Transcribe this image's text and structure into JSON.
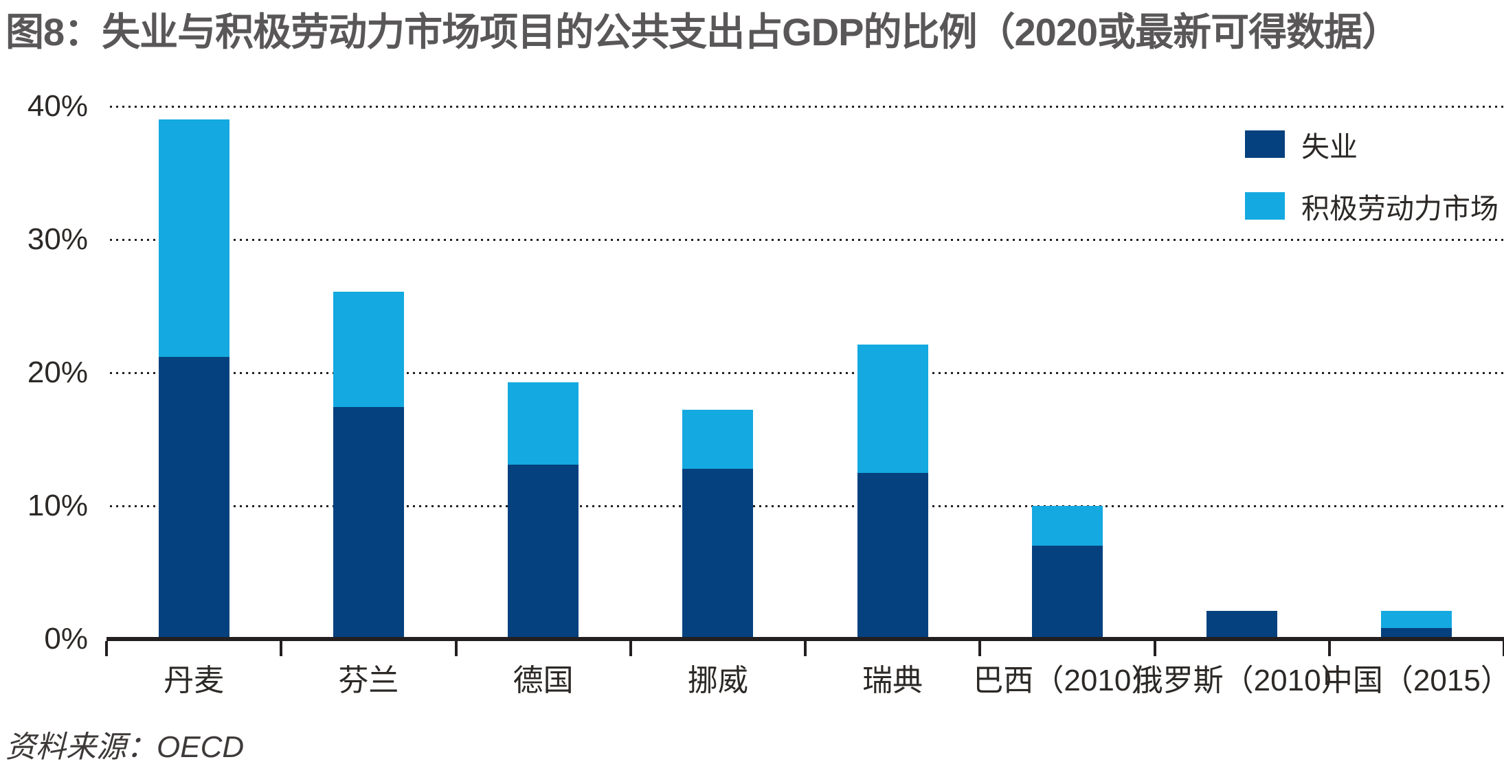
{
  "figure": {
    "number_label": "图8",
    "source": "资料来源：OECD"
  },
  "colors": {
    "unemployment": "#04417e",
    "almp": "#14a9e0",
    "title_gray": "#595757",
    "axis_dark": "#231f20"
  },
  "chart_data": {
    "type": "bar",
    "stacked": true,
    "title": "图8：失业与积极劳动力市场项目的公共支出占GDP的比例（2020或最新可得数据）",
    "source": "资料来源：OECD",
    "unit": "%",
    "categories": [
      "丹麦",
      "芬兰",
      "德国",
      "挪威",
      "瑞典",
      "巴西（2010）",
      "俄罗斯（2010）",
      "中国（2015）"
    ],
    "series": [
      {
        "name": "失业",
        "color_key": "unemployment",
        "values": [
          21.2,
          17.4,
          13.1,
          12.8,
          12.5,
          7.0,
          2.1,
          0.8
        ]
      },
      {
        "name": "积极劳动力市场",
        "color_key": "almp",
        "values": [
          17.8,
          8.7,
          6.2,
          4.4,
          9.6,
          3.0,
          0,
          1.3
        ]
      }
    ],
    "totals": [
      39.0,
      26.1,
      19.3,
      17.2,
      22.1,
      10.0,
      2.1,
      2.1
    ],
    "ylim": [
      0,
      40
    ],
    "yticks": [
      {
        "value": 0,
        "label": "0%"
      },
      {
        "value": 10,
        "label": "10%"
      },
      {
        "value": 20,
        "label": "20%"
      },
      {
        "value": 30,
        "label": "30%"
      },
      {
        "value": 40,
        "label": "40%"
      }
    ],
    "grid": "dotted horizontal lines at 10/20/30/40",
    "legend_position": "top-right"
  }
}
